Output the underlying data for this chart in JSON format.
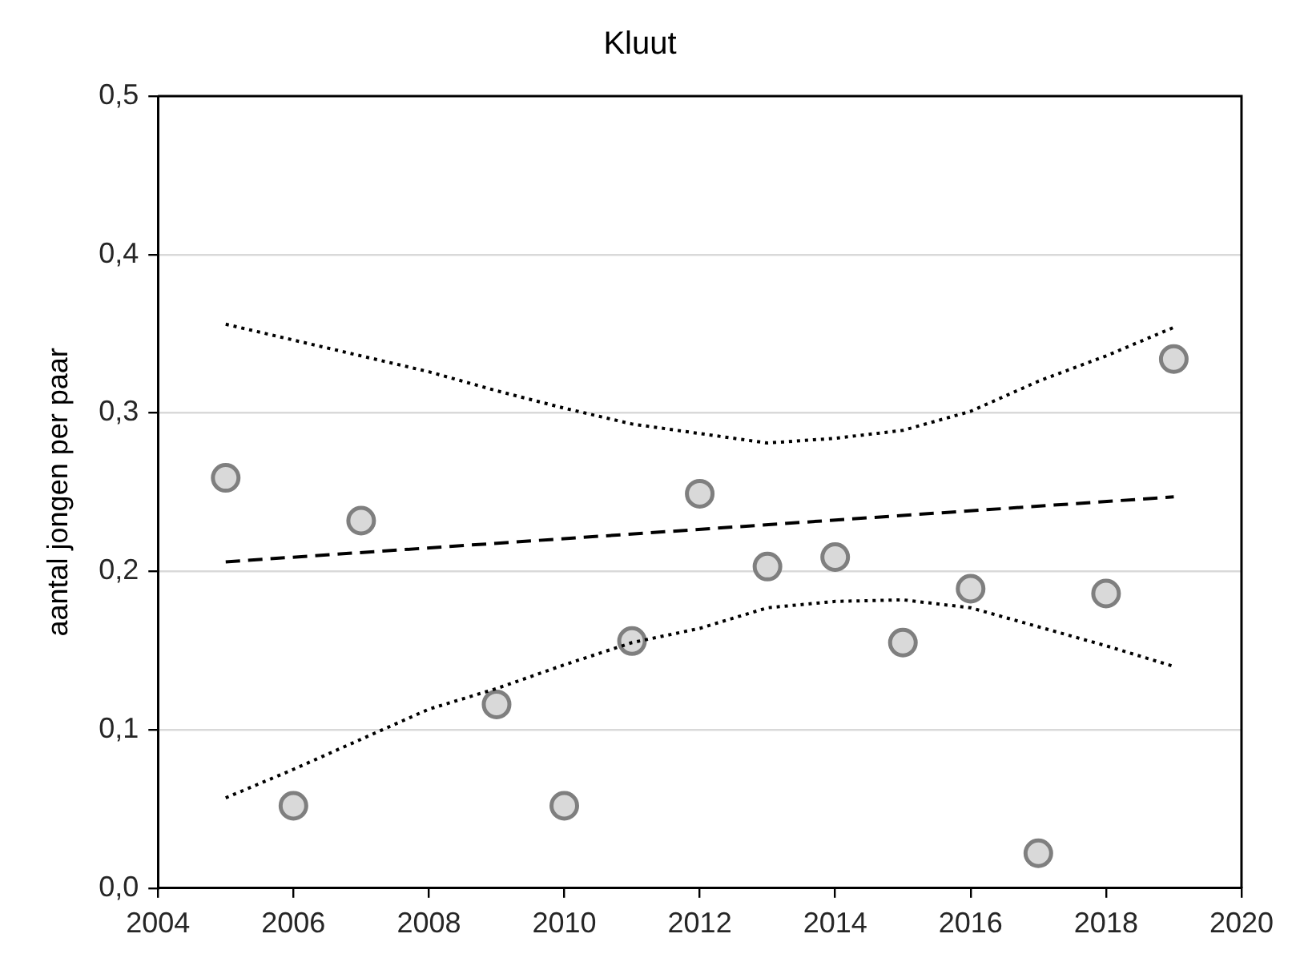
{
  "chart_data": {
    "type": "scatter",
    "title": "Kluut",
    "ylabel": "aantal jongen per paar",
    "x": [
      2005,
      2006,
      2007,
      2009,
      2010,
      2011,
      2012,
      2013,
      2014,
      2015,
      2016,
      2017,
      2018,
      2019
    ],
    "xlim": [
      2004,
      2020
    ],
    "xticks": [
      2004,
      2006,
      2008,
      2010,
      2012,
      2014,
      2016,
      2018,
      2020
    ],
    "ylim": [
      0,
      0.5
    ],
    "yticks": [
      {
        "value": 0,
        "label": "0,0"
      },
      {
        "value": 0.1,
        "label": "0,1"
      },
      {
        "value": 0.2,
        "label": "0,2"
      },
      {
        "value": 0.3,
        "label": "0,3"
      },
      {
        "value": 0.4,
        "label": "0,4"
      },
      {
        "value": 0.5,
        "label": "0,5"
      }
    ],
    "grid": "y",
    "legend": false,
    "series": [
      {
        "type": "line",
        "color": "#000000",
        "line_style": "dotted",
        "marker": "none",
        "x": [
          2005,
          2006,
          2007,
          2008,
          2009,
          2010,
          2011,
          2012,
          2013,
          2014,
          2015,
          2016,
          2017,
          2018,
          2019
        ],
        "values": [
          0.356,
          0.346,
          0.336,
          0.326,
          0.314,
          0.303,
          0.293,
          0.287,
          0.281,
          0.284,
          0.289,
          0.301,
          0.32,
          0.336,
          0.354
        ]
      },
      {
        "type": "line",
        "color": "#000000",
        "line_style": "dotted",
        "marker": "none",
        "x": [
          2005,
          2006,
          2007,
          2008,
          2009,
          2010,
          2011,
          2012,
          2013,
          2014,
          2015,
          2016,
          2017,
          2018,
          2019
        ],
        "values": [
          0.057,
          0.075,
          0.094,
          0.113,
          0.126,
          0.141,
          0.155,
          0.164,
          0.177,
          0.181,
          0.182,
          0.177,
          0.165,
          0.153,
          0.14
        ]
      },
      {
        "type": "line",
        "color": "#000000",
        "line_style": "dashed",
        "marker": "none",
        "x": [
          2005,
          2019
        ],
        "values": [
          0.206,
          0.247
        ]
      },
      {
        "type": "scatter",
        "color": "#d9d9d9",
        "marker": "circle",
        "values": [
          0.259,
          0.052,
          0.232,
          0.116,
          0.052,
          0.156,
          0.249,
          0.203,
          0.209,
          0.155,
          0.189,
          0.022,
          0.186,
          0.334
        ]
      }
    ]
  }
}
